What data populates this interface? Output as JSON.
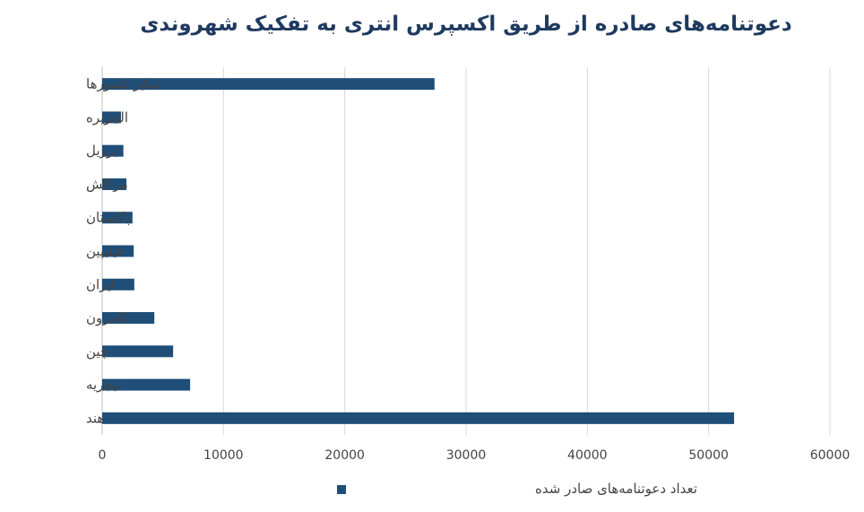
{
  "chart_data": {
    "type": "bar",
    "orientation": "horizontal",
    "title": "دعوتنامه‌های صادره از طریق اکسپرس انتری به تفکیک شهروندی",
    "categories": [
      "سایر کشورها",
      "الجزیره",
      "برزیل",
      "مراکش",
      "پاکستان",
      "فیلیپین",
      "ایران",
      "کامرون",
      "چین",
      "نیجریه",
      "هند"
    ],
    "series": [
      {
        "name": "تعداد دعوتنامه‌های صادر شده",
        "values": [
          27400,
          1550,
          1750,
          2000,
          2500,
          2600,
          2650,
          4300,
          5850,
          7250,
          52100
        ]
      }
    ],
    "xlim": [
      0,
      60000
    ],
    "xticks": [
      "0",
      "10000",
      "20000",
      "30000",
      "40000",
      "50000",
      "60000"
    ],
    "grid": true,
    "legend": "bottom",
    "colors": {
      "bar": "#1f4e79",
      "grid": "#d9d9d9",
      "title": "#1f3a5f"
    }
  }
}
